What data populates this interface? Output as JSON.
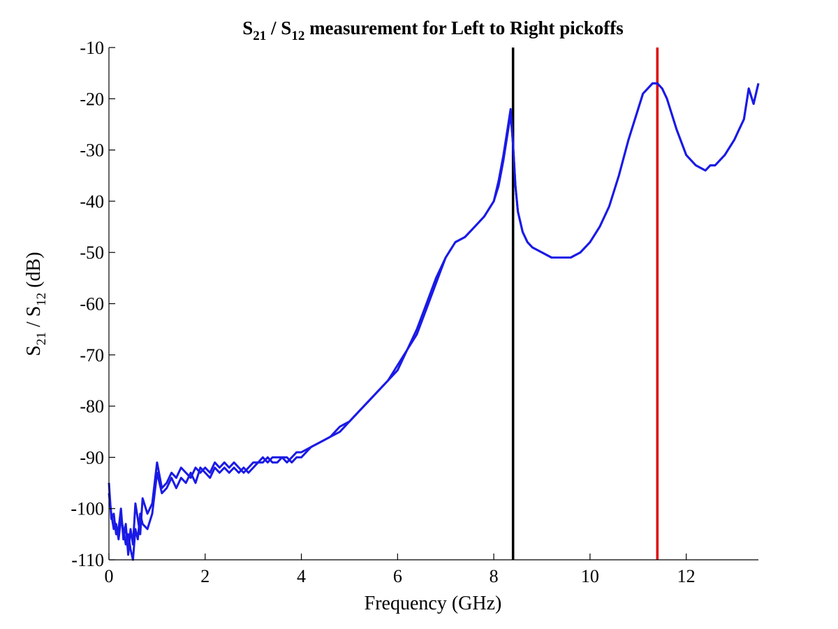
{
  "chart_data": {
    "type": "line",
    "title": {
      "s1": "S",
      "s1_sub": "21",
      "sep": " / ",
      "s2": "S",
      "s2_sub": "12",
      "rest": " measurement for Left to Right pickoffs"
    },
    "xlabel": "Frequency (GHz)",
    "ylabel": {
      "s1": "S",
      "s1_sub": "21",
      "sep": " / ",
      "s2": "S",
      "s2_sub": "12",
      "rest": " (dB)"
    },
    "xlim": [
      0,
      13.5
    ],
    "ylim": [
      -110,
      -10
    ],
    "xticks": [
      0,
      2,
      4,
      6,
      8,
      10,
      12
    ],
    "xtick_labels": [
      "0",
      "2",
      "4",
      "6",
      "8",
      "10",
      "12"
    ],
    "yticks": [
      -10,
      -20,
      -30,
      -40,
      -50,
      -60,
      -70,
      -80,
      -90,
      -100,
      -110
    ],
    "ytick_labels": [
      "-10",
      "-20",
      "-30",
      "-40",
      "-50",
      "-60",
      "-70",
      "-80",
      "-90",
      "-100",
      "-110"
    ],
    "grid": false,
    "vertical_lines": [
      {
        "x": 8.4,
        "color": "#000000"
      },
      {
        "x": 11.4,
        "color": "#e00000"
      }
    ],
    "series": [
      {
        "color": "#1a1ae6",
        "x": [
          0.0,
          0.05,
          0.1,
          0.15,
          0.2,
          0.25,
          0.3,
          0.35,
          0.4,
          0.45,
          0.5,
          0.55,
          0.6,
          0.65,
          0.7,
          0.8,
          0.9,
          1.0,
          1.1,
          1.2,
          1.3,
          1.4,
          1.5,
          1.6,
          1.7,
          1.8,
          1.9,
          2.0,
          2.1,
          2.2,
          2.3,
          2.4,
          2.5,
          2.6,
          2.7,
          2.8,
          2.9,
          3.0,
          3.1,
          3.2,
          3.3,
          3.4,
          3.5,
          3.6,
          3.7,
          3.8,
          3.9,
          4.0,
          4.2,
          4.4,
          4.6,
          4.8,
          5.0,
          5.2,
          5.4,
          5.6,
          5.8,
          6.0,
          6.2,
          6.4,
          6.6,
          6.8,
          7.0,
          7.2,
          7.4,
          7.6,
          7.8,
          8.0,
          8.1,
          8.2,
          8.3,
          8.35,
          8.4,
          8.45,
          8.5,
          8.6,
          8.7,
          8.8,
          9.0,
          9.2,
          9.4,
          9.6,
          9.8,
          10.0,
          10.2,
          10.4,
          10.6,
          10.8,
          11.0,
          11.1,
          11.2,
          11.3,
          11.4,
          11.5,
          11.6,
          11.7,
          11.8,
          12.0,
          12.2,
          12.4,
          12.5,
          12.6,
          12.8,
          13.0,
          13.1,
          13.2,
          13.3,
          13.4,
          13.5
        ],
        "y": [
          -95,
          -102,
          -101,
          -105,
          -104,
          -100,
          -106,
          -103,
          -109,
          -104,
          -107,
          -99,
          -102,
          -105,
          -98,
          -101,
          -99,
          -91,
          -96,
          -95,
          -93,
          -94,
          -92,
          -93,
          -94,
          -92,
          -93,
          -92,
          -93,
          -91,
          -92,
          -91,
          -92,
          -91,
          -92,
          -93,
          -92,
          -91,
          -91,
          -90,
          -91,
          -90,
          -90,
          -90,
          -91,
          -90,
          -89,
          -89,
          -88,
          -87,
          -86,
          -84,
          -83,
          -81,
          -79,
          -77,
          -75,
          -72,
          -69,
          -65,
          -60,
          -55,
          -51,
          -48,
          -47,
          -45,
          -43,
          -40,
          -36,
          -31,
          -25,
          -22,
          -29,
          -37,
          -42,
          -46,
          -48,
          -49,
          -50,
          -51,
          -51,
          -51,
          -50,
          -48,
          -45,
          -41,
          -35,
          -28,
          -22,
          -19,
          -18,
          -17,
          -17,
          -18,
          -20,
          -23,
          -26,
          -31,
          -33,
          -34,
          -33,
          -33,
          -31,
          -28,
          -26,
          -24,
          -18,
          -21,
          -17
        ]
      },
      {
        "color": "#1a1ae6",
        "x": [
          0.0,
          0.05,
          0.1,
          0.15,
          0.2,
          0.25,
          0.3,
          0.35,
          0.4,
          0.45,
          0.5,
          0.55,
          0.6,
          0.65,
          0.7,
          0.8,
          0.9,
          1.0,
          1.1,
          1.2,
          1.3,
          1.4,
          1.5,
          1.6,
          1.7,
          1.8,
          1.9,
          2.0,
          2.1,
          2.2,
          2.3,
          2.4,
          2.5,
          2.6,
          2.7,
          2.8,
          2.9,
          3.0,
          3.1,
          3.2,
          3.3,
          3.4,
          3.5,
          3.6,
          3.7,
          3.8,
          3.9,
          4.0,
          4.2,
          4.4,
          4.6,
          4.8,
          5.0,
          5.2,
          5.4,
          5.6,
          5.8,
          6.0,
          6.2,
          6.4,
          6.6,
          6.8,
          7.0,
          7.2,
          7.4,
          7.6,
          7.8,
          8.0,
          8.1,
          8.2,
          8.3,
          8.35,
          8.4,
          8.45,
          8.5,
          8.6,
          8.7,
          8.8,
          9.0,
          9.2,
          9.4,
          9.6,
          9.8,
          10.0,
          10.2,
          10.4,
          10.6,
          10.8,
          11.0,
          11.1,
          11.2,
          11.3,
          11.4,
          11.5,
          11.6,
          11.7,
          11.8,
          12.0,
          12.2,
          12.4,
          12.5,
          12.6,
          12.8,
          13.0,
          13.1,
          13.2,
          13.3,
          13.4,
          13.5
        ],
        "y": [
          -97,
          -101,
          -104,
          -103,
          -106,
          -102,
          -104,
          -107,
          -105,
          -108,
          -110,
          -104,
          -106,
          -101,
          -103,
          -104,
          -101,
          -93,
          -97,
          -96,
          -94,
          -96,
          -94,
          -95,
          -93,
          -95,
          -92,
          -93,
          -94,
          -92,
          -93,
          -92,
          -93,
          -92,
          -93,
          -92,
          -93,
          -92,
          -91,
          -91,
          -90,
          -91,
          -91,
          -90,
          -90,
          -91,
          -90,
          -90,
          -88,
          -87,
          -86,
          -85,
          -83,
          -81,
          -79,
          -77,
          -75,
          -73,
          -69,
          -66,
          -61,
          -56,
          -51,
          -48,
          -47,
          -45,
          -43,
          -40,
          -37,
          -32,
          -26,
          -23,
          -29,
          -37,
          -42,
          -46,
          -48,
          -49,
          -50,
          -51,
          -51,
          -51,
          -50,
          -48,
          -45,
          -41,
          -35,
          -28,
          -22,
          -19,
          -18,
          -17,
          -17,
          -18,
          -20,
          -23,
          -26,
          -31,
          -33,
          -34,
          -33,
          -33,
          -31,
          -28,
          -26,
          -24,
          -18,
          -21,
          -17
        ]
      }
    ]
  }
}
